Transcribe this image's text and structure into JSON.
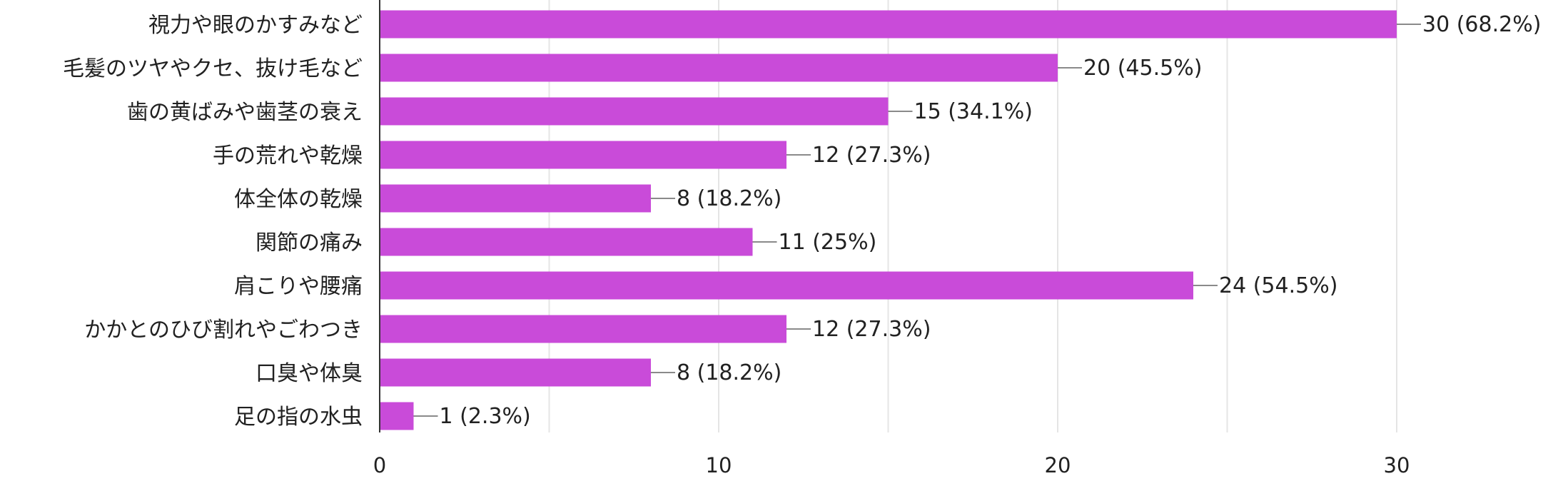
{
  "chart_data": {
    "type": "bar",
    "orientation": "horizontal",
    "categories": [
      "視力や眼のかすみなど",
      "毛髪のツヤやクセ、抜け毛など",
      "歯の黄ばみや歯茎の衰え",
      "手の荒れや乾燥",
      "体全体の乾燥",
      "関節の痛み",
      "肩こりや腰痛",
      "かかとのひび割れやごわつき",
      "口臭や体臭",
      "足の指の水虫"
    ],
    "values": [
      30,
      20,
      15,
      12,
      8,
      11,
      24,
      12,
      8,
      1
    ],
    "value_labels": [
      "30 (68.2%)",
      "20 (45.5%)",
      "15 (34.1%)",
      "12 (27.3%)",
      "8 (18.2%)",
      "11 (25%)",
      "24 (54.5%)",
      "12 (27.3%)",
      "8 (18.2%)",
      "1 (2.3%)"
    ],
    "xlim": [
      0,
      30
    ],
    "x_ticks": [
      0,
      10,
      20,
      30
    ],
    "x_tick_labels": [
      "0",
      "10",
      "20",
      "30"
    ],
    "minor_grid": [
      5,
      15,
      25
    ],
    "grid": true,
    "legend": "none",
    "colors": {
      "bar": "#c94bd9",
      "grid": "#e5e5e5",
      "axis": "#333333",
      "leader": "#8a8a8a",
      "text": "#212121"
    }
  }
}
